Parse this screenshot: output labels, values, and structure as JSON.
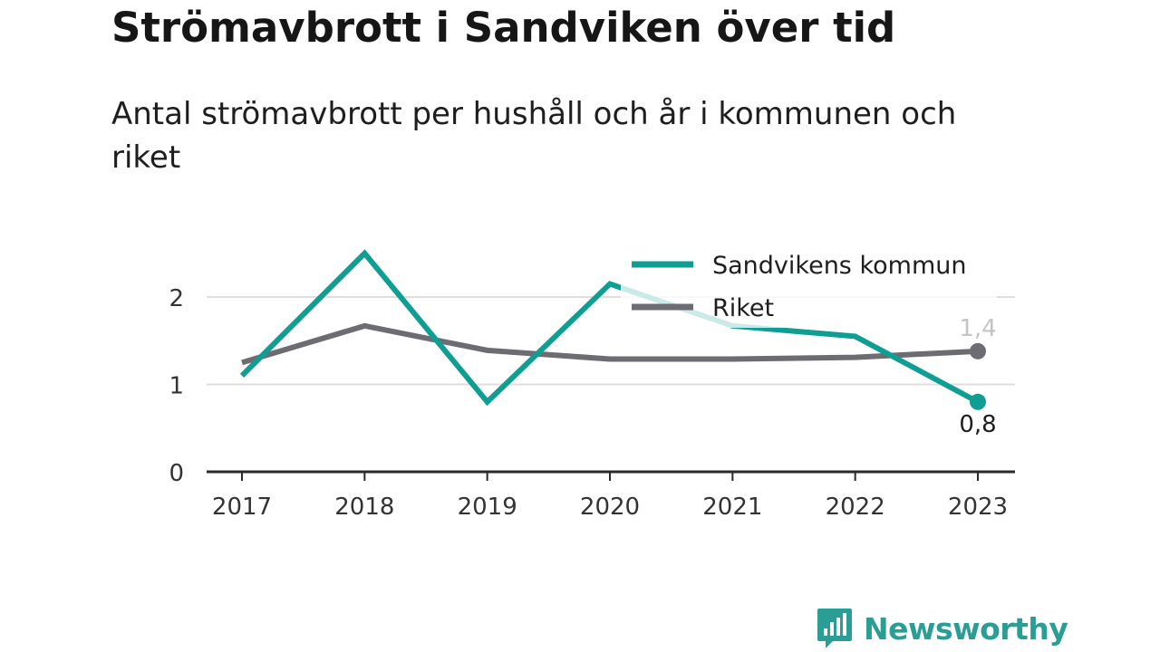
{
  "title": "Strömavbrott i Sandviken över tid",
  "subtitle": "Antal strömavbrott per hushåll och år i kommunen och riket",
  "brand": {
    "name": "Newsworthy",
    "icon": "newsworthy-logo-icon",
    "color": "#2a9e95"
  },
  "chart_data": {
    "type": "line",
    "title": "Strömavbrott i Sandviken över tid",
    "subtitle": "Antal strömavbrott per hushåll och år i kommunen och riket",
    "x": [
      "2017",
      "2018",
      "2019",
      "2020",
      "2021",
      "2022",
      "2023"
    ],
    "y_ticks": [
      0,
      1,
      2
    ],
    "ylim": [
      0,
      2.5
    ],
    "grid": true,
    "legend_position": "top-right",
    "series": [
      {
        "name": "Sandvikens kommun",
        "color": "#0f9e93",
        "values": [
          1.1,
          2.5,
          0.8,
          2.15,
          1.67,
          1.55,
          0.8
        ],
        "end_label": "0,8",
        "end_label_color": "#1e1e1e",
        "end_label_position": "below"
      },
      {
        "name": "Riket",
        "color": "#6d6c73",
        "values": [
          1.25,
          1.67,
          1.39,
          1.29,
          1.29,
          1.31,
          1.38
        ],
        "end_label": "1,4",
        "end_label_color": "#c4c4c4",
        "end_label_position": "above"
      }
    ]
  }
}
